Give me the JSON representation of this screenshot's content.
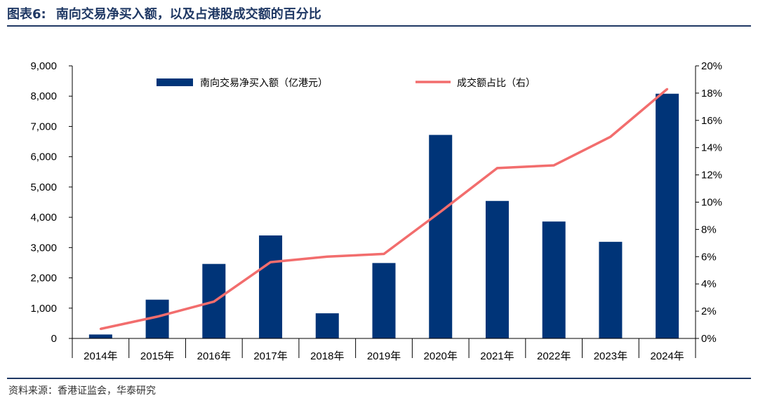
{
  "figure": {
    "number": "图表6:",
    "title": "南向交易净买入额，以及占港股成交额的百分比",
    "source": "资料来源：香港证监会，华泰研究"
  },
  "colors": {
    "bar": "#003478",
    "line": "#f26d6d",
    "accent": "#1f3864"
  },
  "chart_data": {
    "type": "bar",
    "categories": [
      "2014年",
      "2015年",
      "2016年",
      "2017年",
      "2018年",
      "2019年",
      "2020年",
      "2021年",
      "2022年",
      "2023年",
      "2024年"
    ],
    "series": [
      {
        "name": "南向交易净买入额（亿港元）",
        "type": "bar",
        "axis": "left",
        "values": [
          130,
          1280,
          2460,
          3400,
          830,
          2490,
          6720,
          4540,
          3860,
          3190,
          8080
        ]
      },
      {
        "name": "成交额占比（右）",
        "type": "line",
        "axis": "right",
        "values": [
          0.7,
          1.6,
          2.7,
          5.6,
          6.0,
          6.2,
          9.3,
          12.5,
          12.7,
          14.8,
          18.3
        ]
      }
    ],
    "y_left": {
      "range": [
        0,
        9000
      ],
      "ticks": [
        "0",
        "1,000",
        "2,000",
        "3,000",
        "4,000",
        "5,000",
        "6,000",
        "7,000",
        "8,000",
        "9,000"
      ]
    },
    "y_right": {
      "range": [
        0,
        20
      ],
      "ticks": [
        "0%",
        "2%",
        "4%",
        "6%",
        "8%",
        "10%",
        "12%",
        "14%",
        "16%",
        "18%",
        "20%"
      ]
    },
    "legend_position": "top",
    "grid": false
  }
}
